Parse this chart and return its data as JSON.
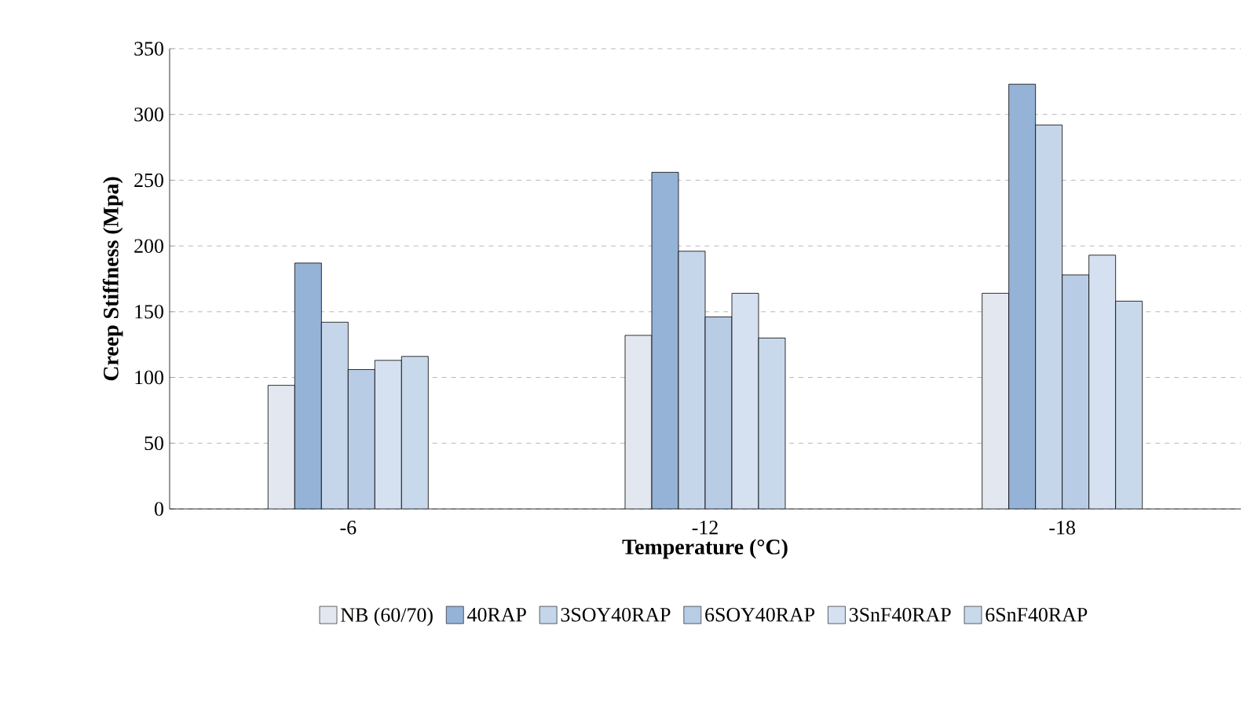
{
  "chart_data": {
    "type": "bar",
    "xlabel": "Temperature (°C)",
    "ylabel": "Creep Stiffness (Mpa)",
    "categories": [
      "-6",
      "-12",
      "-18"
    ],
    "series": [
      {
        "name": "NB (60/70)",
        "color": "#e3e8f0",
        "values": [
          94,
          132,
          164
        ]
      },
      {
        "name": "40RAP",
        "color": "#95b3d7",
        "values": [
          187,
          256,
          323
        ]
      },
      {
        "name": "3SOY40RAP",
        "color": "#c6d6ea",
        "values": [
          142,
          196,
          292
        ]
      },
      {
        "name": "6SOY40RAP",
        "color": "#b9cce6",
        "values": [
          106,
          146,
          178
        ]
      },
      {
        "name": "3SnF40RAP",
        "color": "#d5e1f0",
        "values": [
          113,
          164,
          193
        ]
      },
      {
        "name": "6SnF40RAP",
        "color": "#c9d9ec",
        "values": [
          116,
          130,
          158
        ]
      }
    ],
    "ylim": [
      0,
      350
    ],
    "yticks": [
      0,
      50,
      100,
      150,
      200,
      250,
      300,
      350
    ],
    "grid": "y",
    "legend": "bottom"
  }
}
